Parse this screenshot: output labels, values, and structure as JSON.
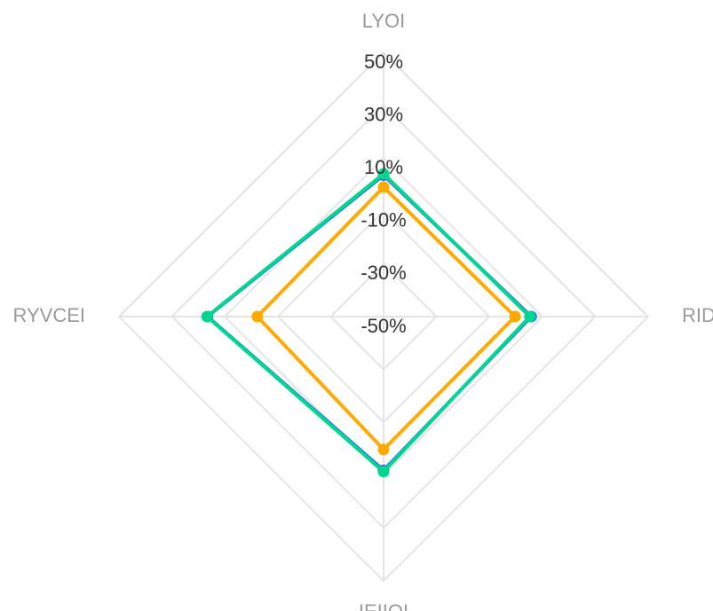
{
  "chart_data": {
    "type": "radar",
    "categories": [
      "LYOI",
      "RID",
      "IEIIOI",
      "RYVCEI"
    ],
    "ylim": [
      -50,
      50
    ],
    "yticks": [
      {
        "value": -50,
        "label": "-50%"
      },
      {
        "value": -30,
        "label": "-30%"
      },
      {
        "value": -10,
        "label": "-10%"
      },
      {
        "value": 10,
        "label": "10%"
      },
      {
        "value": 30,
        "label": "30%"
      },
      {
        "value": 50,
        "label": "50%"
      }
    ],
    "grid": true,
    "series": [
      {
        "color": "#3366ff",
        "values": [
          3.5,
          5.8,
          8.2,
          16.5
        ]
      },
      {
        "color": "#00d68f",
        "values": [
          4,
          5.3,
          8.7,
          16.7
        ]
      },
      {
        "color": "#ffaa00",
        "values": [
          -1,
          -0.3,
          0.3,
          -2.3
        ]
      }
    ]
  }
}
